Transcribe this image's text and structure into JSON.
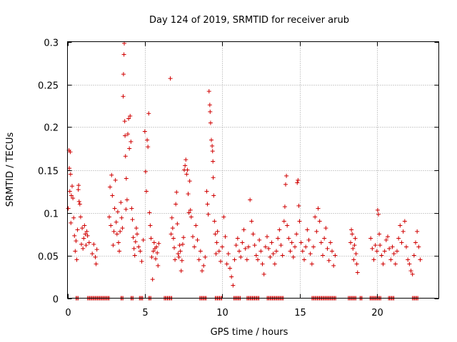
{
  "chart_data": {
    "type": "scatter",
    "title": "Day 124 of 2019, SRMTID for receiver arub",
    "xlabel": "GPS time / hours",
    "ylabel": "SRMTID / TECUs",
    "xlim": [
      0,
      24
    ],
    "ylim": [
      0,
      0.3
    ],
    "xticks": [
      0,
      5,
      10,
      15,
      20
    ],
    "yticks": [
      0,
      0.05,
      0.1,
      0.15,
      0.2,
      0.25,
      0.3
    ],
    "xtick_labels": [
      "0",
      "5",
      "10",
      "15",
      "20"
    ],
    "ytick_labels": [
      "0",
      "0.05",
      "0.1",
      "0.15",
      "0.2",
      "0.25",
      "0.3"
    ],
    "grid": true,
    "marker": "+",
    "color": "#d00000",
    "series": [
      {
        "name": "SRMTID",
        "points": [
          [
            0.05,
            0.105
          ],
          [
            0.1,
            0.173
          ],
          [
            0.12,
            0.152
          ],
          [
            0.15,
            0.125
          ],
          [
            0.18,
            0.171
          ],
          [
            0.2,
            0.145
          ],
          [
            0.22,
            0.088
          ],
          [
            0.25,
            0.12
          ],
          [
            0.3,
            0.131
          ],
          [
            0.35,
            0.117
          ],
          [
            0.4,
            0.094
          ],
          [
            0.45,
            0.073
          ],
          [
            0.5,
            0.055
          ],
          [
            0.55,
            0.067
          ],
          [
            0.6,
            0.045
          ],
          [
            0.65,
            0.08
          ],
          [
            0.7,
            0.127
          ],
          [
            0.72,
            0.132
          ],
          [
            0.75,
            0.113
          ],
          [
            0.8,
            0.11
          ],
          [
            0.85,
            0.095
          ],
          [
            0.9,
            0.063
          ],
          [
            0.95,
            0.082
          ],
          [
            1.0,
            0.058
          ],
          [
            1.05,
            0.07
          ],
          [
            1.1,
            0.085
          ],
          [
            1.15,
            0.075
          ],
          [
            1.2,
            0.062
          ],
          [
            1.25,
            0.078
          ],
          [
            1.3,
            0.073
          ],
          [
            1.4,
            0.065
          ],
          [
            1.6,
            0.052
          ],
          [
            1.7,
            0.063
          ],
          [
            1.8,
            0.048
          ],
          [
            1.85,
            0.04
          ],
          [
            1.9,
            0.057
          ],
          [
            2.7,
            0.095
          ],
          [
            2.75,
            0.13
          ],
          [
            2.8,
            0.085
          ],
          [
            2.85,
            0.144
          ],
          [
            2.9,
            0.12
          ],
          [
            2.95,
            0.062
          ],
          [
            3.0,
            0.078
          ],
          [
            3.05,
            0.105
          ],
          [
            3.1,
            0.138
          ],
          [
            3.15,
            0.089
          ],
          [
            3.2,
            0.075
          ],
          [
            3.25,
            0.101
          ],
          [
            3.3,
            0.065
          ],
          [
            3.35,
            0.055
          ],
          [
            3.4,
            0.078
          ],
          [
            3.45,
            0.112
          ],
          [
            3.5,
            0.094
          ],
          [
            3.55,
            0.082
          ],
          [
            3.6,
            0.236
          ],
          [
            3.62,
            0.262
          ],
          [
            3.65,
            0.285
          ],
          [
            3.67,
            0.298
          ],
          [
            3.7,
            0.207
          ],
          [
            3.72,
            0.19
          ],
          [
            3.75,
            0.166
          ],
          [
            3.78,
            0.104
          ],
          [
            3.8,
            0.14
          ],
          [
            3.85,
            0.115
          ],
          [
            3.9,
            0.192
          ],
          [
            3.95,
            0.21
          ],
          [
            4.0,
            0.175
          ],
          [
            4.05,
            0.213
          ],
          [
            4.1,
            0.183
          ],
          [
            4.15,
            0.105
          ],
          [
            4.2,
            0.092
          ],
          [
            4.25,
            0.071
          ],
          [
            4.3,
            0.058
          ],
          [
            4.35,
            0.05
          ],
          [
            4.4,
            0.066
          ],
          [
            4.45,
            0.082
          ],
          [
            4.5,
            0.075
          ],
          [
            4.6,
            0.06
          ],
          [
            4.7,
            0.055
          ],
          [
            4.8,
            0.043
          ],
          [
            4.9,
            0.068
          ],
          [
            5.0,
            0.195
          ],
          [
            5.05,
            0.148
          ],
          [
            5.1,
            0.125
          ],
          [
            5.15,
            0.185
          ],
          [
            5.2,
            0.177
          ],
          [
            5.25,
            0.216
          ],
          [
            5.3,
            0.1
          ],
          [
            5.35,
            0.085
          ],
          [
            5.4,
            0.07
          ],
          [
            5.45,
            0.048
          ],
          [
            5.5,
            0.022
          ],
          [
            5.55,
            0.055
          ],
          [
            5.6,
            0.065
          ],
          [
            5.65,
            0.058
          ],
          [
            5.7,
            0.046
          ],
          [
            5.75,
            0.06
          ],
          [
            5.8,
            0.053
          ],
          [
            5.85,
            0.038
          ],
          [
            5.9,
            0.064
          ],
          [
            6.65,
            0.257
          ],
          [
            6.7,
            0.075
          ],
          [
            6.75,
            0.094
          ],
          [
            6.8,
            0.082
          ],
          [
            6.85,
            0.07
          ],
          [
            6.9,
            0.059
          ],
          [
            6.95,
            0.045
          ],
          [
            7.0,
            0.11
          ],
          [
            7.05,
            0.124
          ],
          [
            7.1,
            0.087
          ],
          [
            7.15,
            0.052
          ],
          [
            7.2,
            0.048
          ],
          [
            7.25,
            0.062
          ],
          [
            7.3,
            0.055
          ],
          [
            7.35,
            0.032
          ],
          [
            7.4,
            0.044
          ],
          [
            7.45,
            0.063
          ],
          [
            7.5,
            0.071
          ],
          [
            7.55,
            0.15
          ],
          [
            7.6,
            0.155
          ],
          [
            7.65,
            0.162
          ],
          [
            7.7,
            0.145
          ],
          [
            7.75,
            0.15
          ],
          [
            7.8,
            0.122
          ],
          [
            7.85,
            0.1
          ],
          [
            7.9,
            0.137
          ],
          [
            7.95,
            0.103
          ],
          [
            8.0,
            0.095
          ],
          [
            8.1,
            0.072
          ],
          [
            8.2,
            0.06
          ],
          [
            8.3,
            0.085
          ],
          [
            8.4,
            0.068
          ],
          [
            8.5,
            0.045
          ],
          [
            8.6,
            0.055
          ],
          [
            8.7,
            0.032
          ],
          [
            8.8,
            0.038
          ],
          [
            8.9,
            0.048
          ],
          [
            9.0,
            0.125
          ],
          [
            9.05,
            0.11
          ],
          [
            9.1,
            0.098
          ],
          [
            9.15,
            0.242
          ],
          [
            9.2,
            0.226
          ],
          [
            9.22,
            0.218
          ],
          [
            9.25,
            0.205
          ],
          [
            9.3,
            0.185
          ],
          [
            9.35,
            0.178
          ],
          [
            9.38,
            0.172
          ],
          [
            9.4,
            0.16
          ],
          [
            9.42,
            0.141
          ],
          [
            9.45,
            0.12
          ],
          [
            9.5,
            0.09
          ],
          [
            9.55,
            0.075
          ],
          [
            9.6,
            0.052
          ],
          [
            9.65,
            0.065
          ],
          [
            9.7,
            0.078
          ],
          [
            9.8,
            0.055
          ],
          [
            9.9,
            0.043
          ],
          [
            10.0,
            0.06
          ],
          [
            10.1,
            0.095
          ],
          [
            10.2,
            0.072
          ],
          [
            10.3,
            0.04
          ],
          [
            10.4,
            0.052
          ],
          [
            10.5,
            0.035
          ],
          [
            10.6,
            0.025
          ],
          [
            10.7,
            0.015
          ],
          [
            10.8,
            0.045
          ],
          [
            10.9,
            0.062
          ],
          [
            11.0,
            0.07
          ],
          [
            11.1,
            0.055
          ],
          [
            11.2,
            0.048
          ],
          [
            11.3,
            0.065
          ],
          [
            11.4,
            0.08
          ],
          [
            11.5,
            0.058
          ],
          [
            11.6,
            0.045
          ],
          [
            11.7,
            0.06
          ],
          [
            11.8,
            0.115
          ],
          [
            11.9,
            0.09
          ],
          [
            12.0,
            0.075
          ],
          [
            12.1,
            0.062
          ],
          [
            12.2,
            0.05
          ],
          [
            12.3,
            0.045
          ],
          [
            12.4,
            0.068
          ],
          [
            12.5,
            0.055
          ],
          [
            12.6,
            0.04
          ],
          [
            12.7,
            0.028
          ],
          [
            12.8,
            0.06
          ],
          [
            12.9,
            0.072
          ],
          [
            13.0,
            0.058
          ],
          [
            13.1,
            0.048
          ],
          [
            13.2,
            0.065
          ],
          [
            13.3,
            0.052
          ],
          [
            13.4,
            0.04
          ],
          [
            13.5,
            0.055
          ],
          [
            13.6,
            0.07
          ],
          [
            13.7,
            0.08
          ],
          [
            13.8,
            0.062
          ],
          [
            13.9,
            0.05
          ],
          [
            14.0,
            0.09
          ],
          [
            14.05,
            0.107
          ],
          [
            14.1,
            0.133
          ],
          [
            14.15,
            0.143
          ],
          [
            14.2,
            0.085
          ],
          [
            14.3,
            0.07
          ],
          [
            14.4,
            0.055
          ],
          [
            14.5,
            0.065
          ],
          [
            14.6,
            0.048
          ],
          [
            14.7,
            0.06
          ],
          [
            14.8,
            0.075
          ],
          [
            14.85,
            0.135
          ],
          [
            14.9,
            0.138
          ],
          [
            14.95,
            0.108
          ],
          [
            15.0,
            0.09
          ],
          [
            15.1,
            0.065
          ],
          [
            15.2,
            0.055
          ],
          [
            15.3,
            0.045
          ],
          [
            15.4,
            0.06
          ],
          [
            15.5,
            0.08
          ],
          [
            15.6,
            0.068
          ],
          [
            15.7,
            0.052
          ],
          [
            15.8,
            0.04
          ],
          [
            15.9,
            0.06
          ],
          [
            16.0,
            0.095
          ],
          [
            16.1,
            0.078
          ],
          [
            16.2,
            0.105
          ],
          [
            16.3,
            0.09
          ],
          [
            16.4,
            0.065
          ],
          [
            16.5,
            0.05
          ],
          [
            16.6,
            0.07
          ],
          [
            16.7,
            0.082
          ],
          [
            16.8,
            0.058
          ],
          [
            16.9,
            0.044
          ],
          [
            17.0,
            0.065
          ],
          [
            17.1,
            0.055
          ],
          [
            17.2,
            0.038
          ],
          [
            17.3,
            0.05
          ],
          [
            18.3,
            0.065
          ],
          [
            18.35,
            0.08
          ],
          [
            18.4,
            0.075
          ],
          [
            18.45,
            0.058
          ],
          [
            18.5,
            0.045
          ],
          [
            18.55,
            0.062
          ],
          [
            18.6,
            0.07
          ],
          [
            18.65,
            0.052
          ],
          [
            18.7,
            0.04
          ],
          [
            18.75,
            0.03
          ],
          [
            19.6,
            0.07
          ],
          [
            19.7,
            0.058
          ],
          [
            19.8,
            0.045
          ],
          [
            19.9,
            0.062
          ],
          [
            20.0,
            0.055
          ],
          [
            20.05,
            0.103
          ],
          [
            20.1,
            0.098
          ],
          [
            20.15,
            0.075
          ],
          [
            20.2,
            0.062
          ],
          [
            20.3,
            0.05
          ],
          [
            20.4,
            0.04
          ],
          [
            20.5,
            0.055
          ],
          [
            20.6,
            0.068
          ],
          [
            20.7,
            0.072
          ],
          [
            20.8,
            0.058
          ],
          [
            20.9,
            0.045
          ],
          [
            21.0,
            0.06
          ],
          [
            21.1,
            0.052
          ],
          [
            21.2,
            0.04
          ],
          [
            21.3,
            0.055
          ],
          [
            21.4,
            0.07
          ],
          [
            21.5,
            0.085
          ],
          [
            21.6,
            0.065
          ],
          [
            21.7,
            0.078
          ],
          [
            21.8,
            0.09
          ],
          [
            21.9,
            0.06
          ],
          [
            22.0,
            0.045
          ],
          [
            22.1,
            0.04
          ],
          [
            22.2,
            0.032
          ],
          [
            22.3,
            0.028
          ],
          [
            22.4,
            0.05
          ],
          [
            22.5,
            0.065
          ],
          [
            22.6,
            0.078
          ],
          [
            22.7,
            0.06
          ],
          [
            22.8,
            0.045
          ]
        ]
      }
    ],
    "zero_clusters": [
      [
        0.55,
        0.75
      ],
      [
        1.3,
        2.75
      ],
      [
        3.45,
        3.6
      ],
      [
        4.1,
        4.3
      ],
      [
        4.65,
        4.9
      ],
      [
        5.25,
        5.45
      ],
      [
        6.25,
        6.8
      ],
      [
        8.55,
        9.0
      ],
      [
        9.55,
        10.0
      ],
      [
        10.75,
        11.2
      ],
      [
        11.6,
        12.4
      ],
      [
        12.9,
        14.0
      ],
      [
        15.8,
        17.4
      ],
      [
        18.15,
        18.65
      ],
      [
        18.9,
        19.05
      ],
      [
        19.55,
        20.3
      ],
      [
        20.75,
        21.1
      ],
      [
        22.3,
        22.65
      ]
    ]
  }
}
